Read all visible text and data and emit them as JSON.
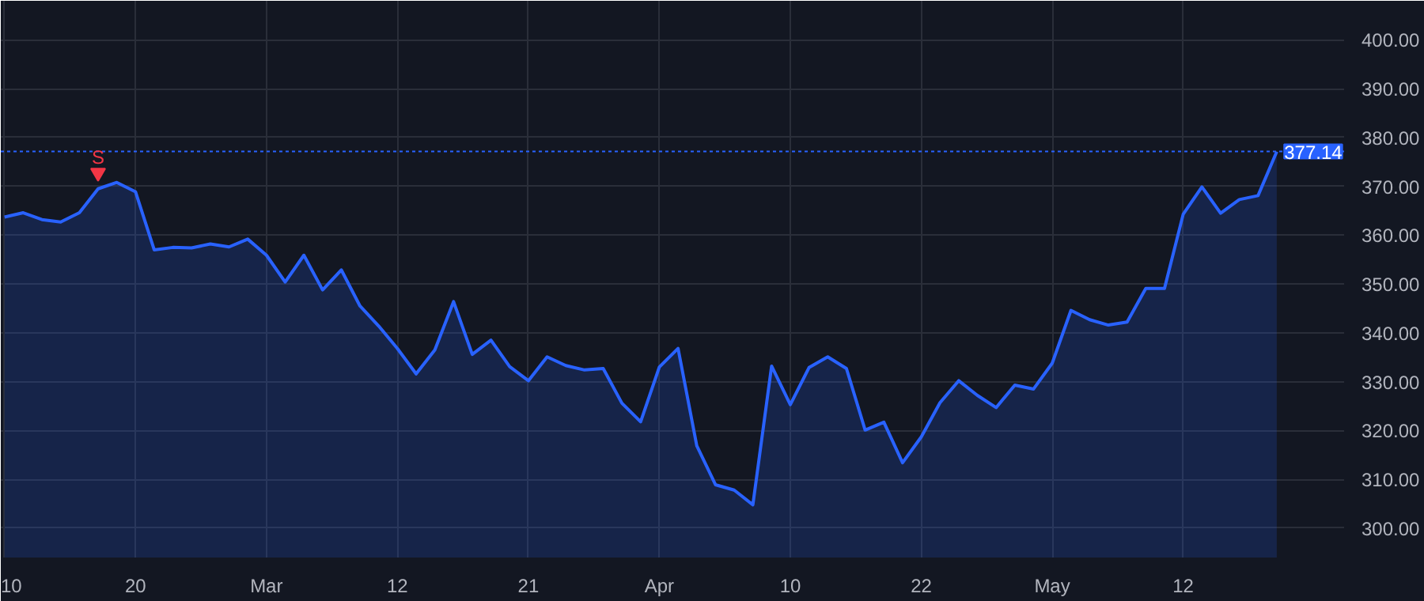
{
  "chart_data": {
    "type": "area",
    "categories": [
      "10",
      null,
      null,
      null,
      null,
      null,
      null,
      "20",
      null,
      null,
      null,
      null,
      null,
      null,
      "Mar",
      null,
      null,
      null,
      null,
      null,
      null,
      "12",
      null,
      null,
      null,
      null,
      null,
      null,
      "21",
      null,
      null,
      null,
      null,
      null,
      null,
      "Apr",
      null,
      null,
      null,
      null,
      null,
      null,
      "10",
      null,
      null,
      null,
      null,
      null,
      null,
      "22",
      null,
      null,
      null,
      null,
      null,
      null,
      "May",
      null,
      null,
      null,
      null,
      null,
      null,
      "12",
      null,
      null,
      null,
      null,
      null
    ],
    "series": [
      {
        "color": "#2962ff",
        "values": [
          363.7,
          364.6,
          363.2,
          362.7,
          364.6,
          369.5,
          370.8,
          368.9,
          357.0,
          357.5,
          357.4,
          358.2,
          357.6,
          359.2,
          355.9,
          350.4,
          355.9,
          348.8,
          352.9,
          345.5,
          341.4,
          336.8,
          331.6,
          336.5,
          346.4,
          335.6,
          338.5,
          333.1,
          330.2,
          335.1,
          333.3,
          332.4,
          332.7,
          325.6,
          321.8,
          333.0,
          336.8,
          316.9,
          308.9,
          307.8,
          304.8,
          333.2,
          325.3,
          332.9,
          335.1,
          332.7,
          320.1,
          321.7,
          313.4,
          318.7,
          325.7,
          330.2,
          327.2,
          324.7,
          329.3,
          328.5,
          333.8,
          344.6,
          342.7,
          341.6,
          342.2,
          349.1,
          349.1,
          364.3,
          369.9,
          364.5,
          367.3,
          368.1,
          377.1
        ]
      },
      {
        "type": "scatter",
        "color": "#f23645",
        "marker": "triangle",
        "values": [
          null,
          null,
          null,
          null,
          null,
          372.8,
          null,
          null,
          null,
          null,
          null,
          null,
          null,
          null,
          null,
          null,
          null,
          null,
          null,
          null,
          null,
          null,
          null,
          null,
          null,
          null,
          null,
          null,
          null,
          null,
          null,
          null,
          null,
          null,
          null,
          null,
          null,
          null,
          null,
          null,
          null,
          null,
          null,
          null,
          null,
          null,
          null,
          null,
          null,
          null,
          null,
          null,
          null,
          null,
          null,
          null,
          null,
          null,
          null,
          null,
          null,
          null,
          null,
          null,
          null,
          null,
          null,
          null,
          null
        ]
      }
    ],
    "ylim": [
      294,
      408
    ],
    "yticks": [
      {
        "value": 300,
        "label": "300.00"
      },
      {
        "value": 310,
        "label": "310.00"
      },
      {
        "value": 320,
        "label": "320.00"
      },
      {
        "value": 330,
        "label": "330.00"
      },
      {
        "value": 340,
        "label": "340.00"
      },
      {
        "value": 350,
        "label": "350.00"
      },
      {
        "value": 360,
        "label": "360.00"
      },
      {
        "value": 370,
        "label": "370.00"
      },
      {
        "value": 380,
        "label": "380.00"
      },
      {
        "value": 390,
        "label": "390.00"
      },
      {
        "value": 400,
        "label": "400.00"
      }
    ],
    "ref_lines": [
      {
        "axis": "y",
        "value": 377.14,
        "label": "377.14",
        "color": "#2962ff",
        "line_style": "dotted"
      }
    ],
    "annotations": [
      {
        "text": "S",
        "y": 376
      }
    ],
    "grid": true
  }
}
